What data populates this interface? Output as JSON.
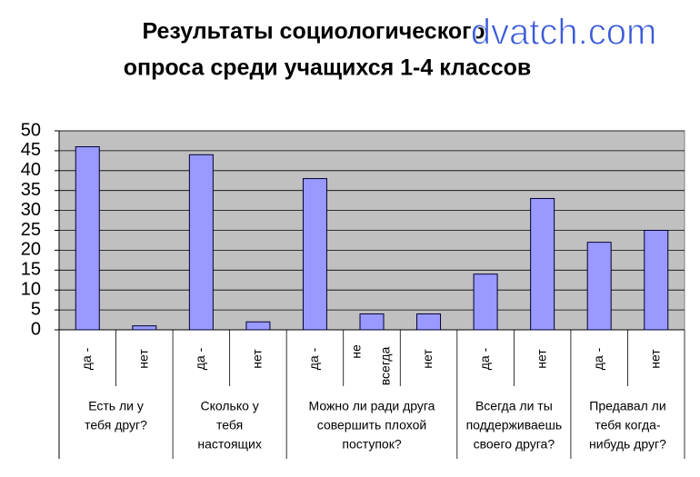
{
  "chart_data": {
    "type": "bar",
    "title": [
      "Результаты социологического",
      "опроса среди учащихся 1-4 классов"
    ],
    "watermark": "dvatch.com",
    "groups": [
      {
        "label": [
          "Есть ли у",
          "тебя друг?"
        ],
        "categories": [
          [
            "да -"
          ],
          [
            "нет"
          ]
        ]
      },
      {
        "label": [
          "Сколько у",
          "тебя",
          "настоящих"
        ],
        "categories": [
          [
            "да -"
          ],
          [
            "нет"
          ]
        ]
      },
      {
        "label": [
          "Можно ли ради друга",
          "совершить плохой",
          "поступок?"
        ],
        "categories": [
          [
            "да -"
          ],
          [
            "не",
            "всегда"
          ],
          [
            "нет"
          ]
        ]
      },
      {
        "label": [
          "Всегда ли ты",
          "поддерживаешь",
          "своего друга?"
        ],
        "categories": [
          [
            "да -"
          ],
          [
            "нет"
          ]
        ]
      },
      {
        "label": [
          "Предавал ли",
          "тебя когда-",
          "нибудь друг?"
        ],
        "categories": [
          [
            "да -"
          ],
          [
            "нет"
          ]
        ]
      }
    ],
    "values": [
      46,
      1,
      44,
      2,
      38,
      4,
      4,
      14,
      33,
      22,
      25
    ],
    "color": "#9999ff",
    "ylim": [
      0,
      50
    ],
    "yticks": [
      0,
      5,
      10,
      15,
      20,
      25,
      30,
      35,
      40,
      45,
      50
    ],
    "grid": true
  }
}
